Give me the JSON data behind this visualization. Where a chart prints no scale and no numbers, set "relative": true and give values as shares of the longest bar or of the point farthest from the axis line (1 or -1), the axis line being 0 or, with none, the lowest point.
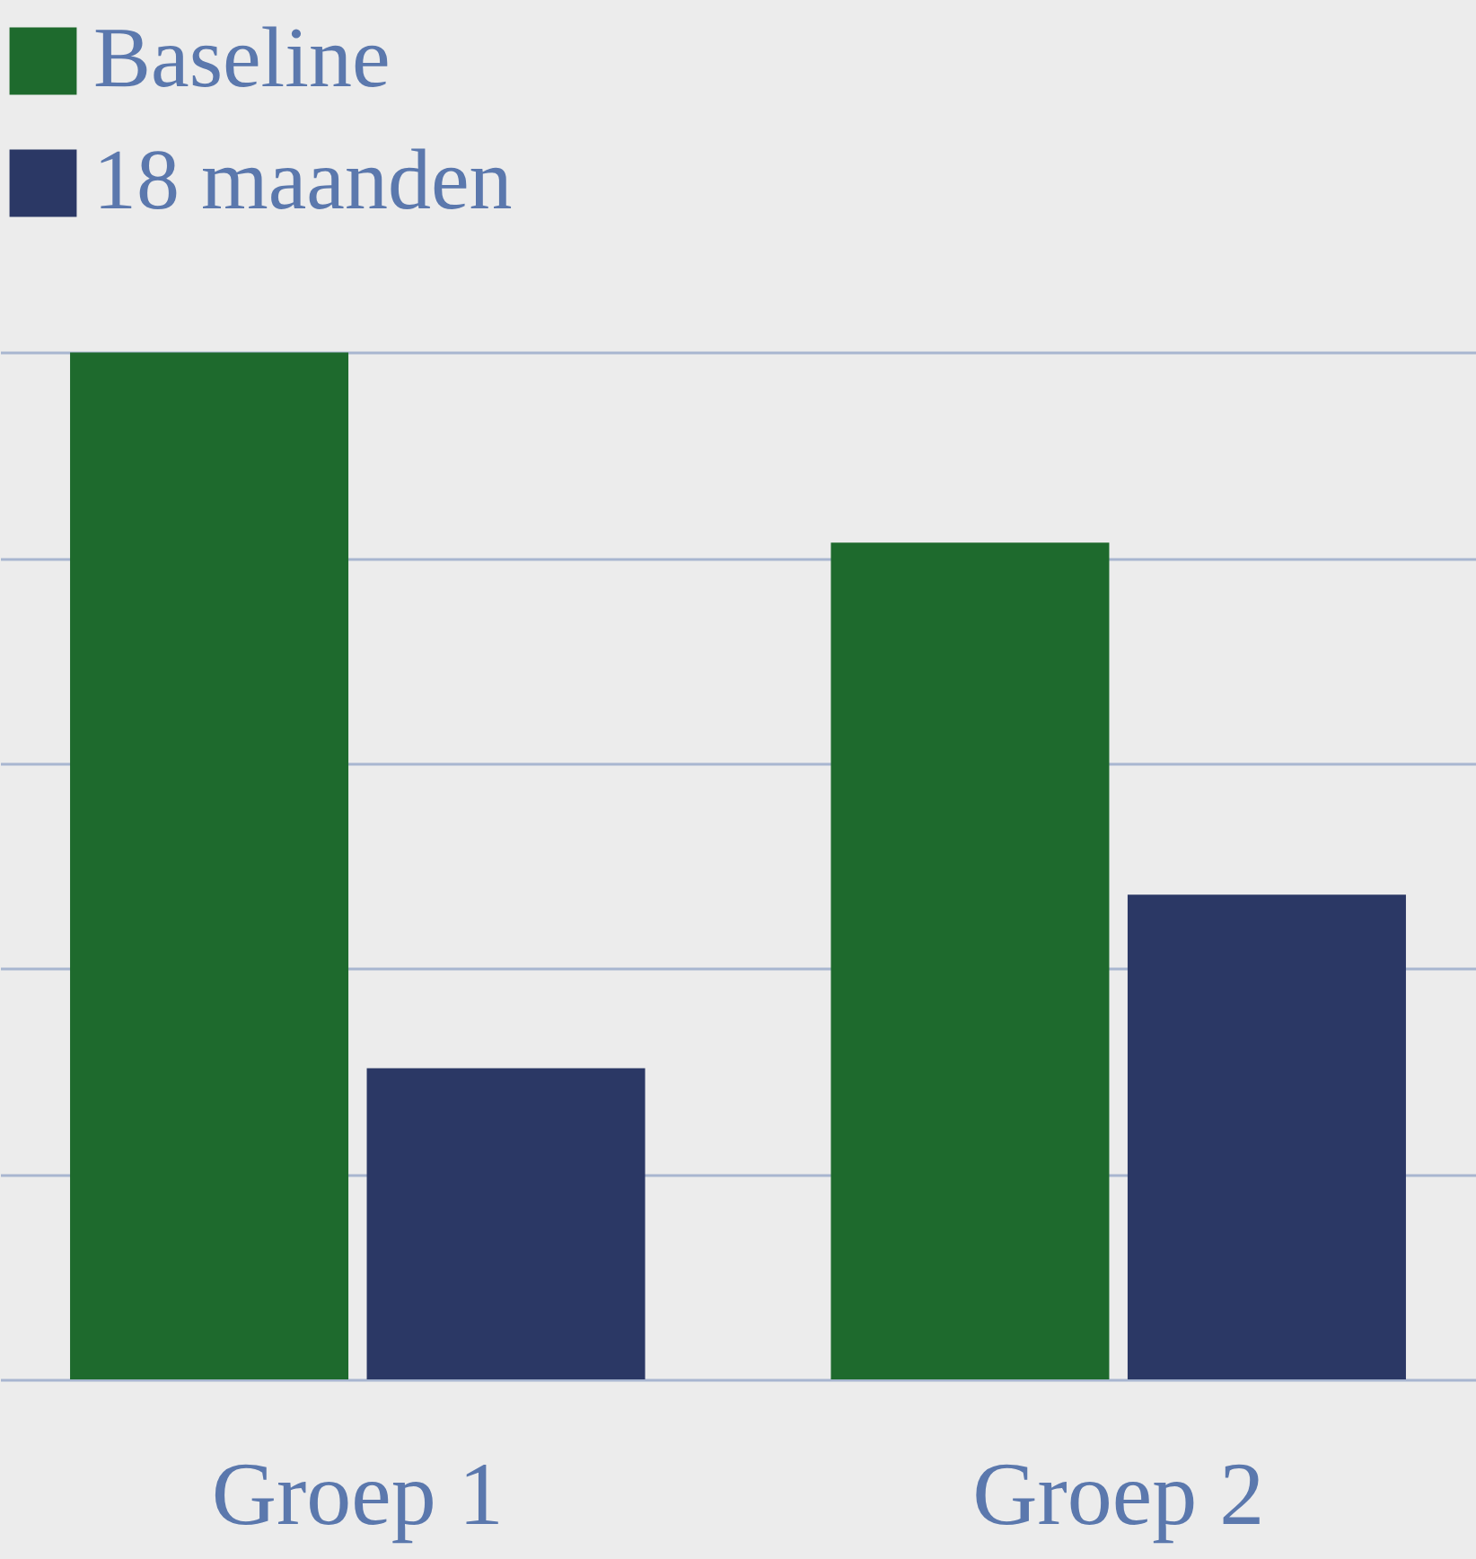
{
  "chart_data": {
    "type": "bar",
    "relative": true,
    "categories": [
      "Groep 1",
      "Groep 2"
    ],
    "series": [
      {
        "name": "Baseline",
        "color": "#1e6a2d",
        "values": [
          1,
          0.815
        ]
      },
      {
        "name": "18 maanden",
        "color": "#2b3865",
        "values": [
          0.303,
          0.472
        ]
      }
    ],
    "grid": "y",
    "legend": "top",
    "tick_labels": "x"
  }
}
